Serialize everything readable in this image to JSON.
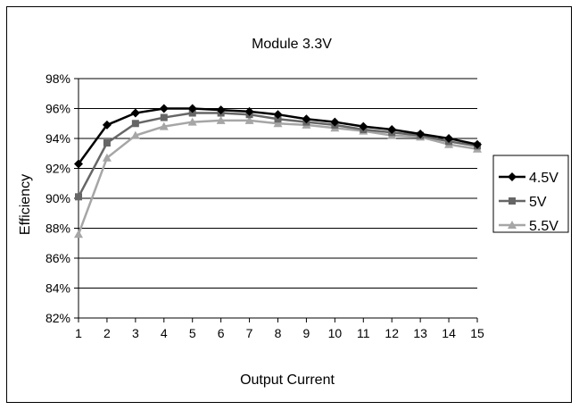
{
  "chart_data": {
    "type": "line",
    "title": "Module 3.3V",
    "xlabel": "Output Current",
    "ylabel": "Efficiency",
    "categories": [
      "1",
      "2",
      "3",
      "4",
      "5",
      "6",
      "7",
      "8",
      "9",
      "10",
      "11",
      "12",
      "13",
      "14",
      "15"
    ],
    "ylim": [
      0.82,
      0.98
    ],
    "yticks": [
      0.82,
      0.84,
      0.86,
      0.88,
      0.9,
      0.92,
      0.94,
      0.96,
      0.98
    ],
    "ytick_labels": [
      "82%",
      "84%",
      "86%",
      "88%",
      "90%",
      "92%",
      "94%",
      "96%",
      "98%"
    ],
    "grid": "horizontal",
    "legend_position": "right",
    "series": [
      {
        "name": "4.5V",
        "marker": "diamond",
        "color": "#000000",
        "values": [
          0.923,
          0.949,
          0.957,
          0.96,
          0.96,
          0.959,
          0.958,
          0.956,
          0.953,
          0.951,
          0.948,
          0.946,
          0.943,
          0.94,
          0.936
        ]
      },
      {
        "name": "5V",
        "marker": "square",
        "color": "#666666",
        "values": [
          0.901,
          0.937,
          0.95,
          0.954,
          0.957,
          0.957,
          0.956,
          0.953,
          0.951,
          0.949,
          0.946,
          0.944,
          0.942,
          0.938,
          0.935
        ]
      },
      {
        "name": "5.5V",
        "marker": "triangle",
        "color": "#a6a6a6",
        "values": [
          0.876,
          0.927,
          0.942,
          0.948,
          0.951,
          0.952,
          0.952,
          0.95,
          0.949,
          0.947,
          0.945,
          0.942,
          0.941,
          0.936,
          0.933
        ]
      }
    ]
  }
}
